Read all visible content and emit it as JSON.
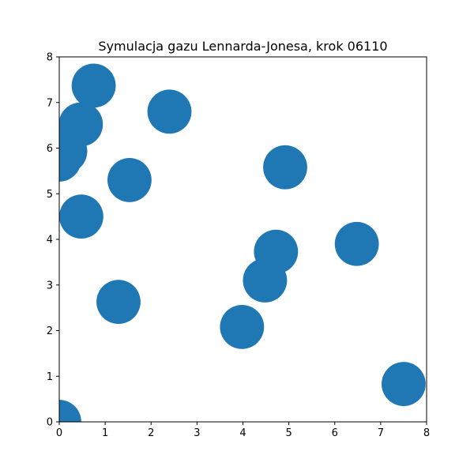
{
  "chart_data": {
    "type": "scatter",
    "title": "Symulacja gazu Lennarda-Jonesa, krok 06110",
    "xlabel": "",
    "ylabel": "",
    "xlim": [
      0,
      8
    ],
    "ylim": [
      0,
      8
    ],
    "x_ticks": [
      "0",
      "1",
      "2",
      "3",
      "4",
      "5",
      "6",
      "7",
      "8"
    ],
    "y_ticks": [
      "0",
      "1",
      "2",
      "3",
      "4",
      "5",
      "6",
      "7",
      "8"
    ],
    "grid": false,
    "marker_color": "#1f77b4",
    "marker_radius_data_units": 0.48,
    "points": [
      {
        "x": 0.75,
        "y": 7.37
      },
      {
        "x": 0.47,
        "y": 6.52
      },
      {
        "x": 0.13,
        "y": 5.93
      },
      {
        "x": 0.0,
        "y": 5.75
      },
      {
        "x": 1.53,
        "y": 5.3
      },
      {
        "x": 0.48,
        "y": 4.5
      },
      {
        "x": 2.4,
        "y": 6.8
      },
      {
        "x": 1.29,
        "y": 2.63
      },
      {
        "x": 4.92,
        "y": 5.58
      },
      {
        "x": 4.72,
        "y": 3.73
      },
      {
        "x": 4.48,
        "y": 3.1
      },
      {
        "x": 3.98,
        "y": 2.08
      },
      {
        "x": 6.48,
        "y": 3.9
      },
      {
        "x": 7.5,
        "y": 0.83
      },
      {
        "x": 0.0,
        "y": 0.0
      }
    ]
  }
}
